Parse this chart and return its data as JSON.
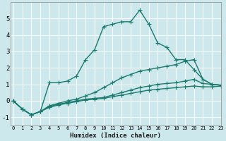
{
  "xlabel": "Humidex (Indice chaleur)",
  "background_color": "#cce8ec",
  "grid_color": "#ffffff",
  "line_color": "#1a7a6e",
  "x_values": [
    0,
    1,
    2,
    3,
    4,
    5,
    6,
    7,
    8,
    9,
    10,
    11,
    12,
    13,
    14,
    15,
    16,
    17,
    18,
    19,
    20,
    21,
    22,
    23
  ],
  "series": [
    [
      0.0,
      -0.5,
      -0.85,
      -0.65,
      1.1,
      1.1,
      1.2,
      1.5,
      2.5,
      3.1,
      4.5,
      4.65,
      4.8,
      4.8,
      5.5,
      4.65,
      3.5,
      3.25,
      2.5,
      2.5,
      1.9,
      1.3,
      1.0,
      0.95
    ],
    [
      0.0,
      -0.5,
      -0.85,
      -0.65,
      -0.3,
      -0.15,
      0.0,
      0.1,
      0.3,
      0.5,
      0.8,
      1.1,
      1.4,
      1.6,
      1.8,
      1.9,
      2.0,
      2.1,
      2.2,
      2.4,
      2.5,
      1.3,
      1.0,
      0.95
    ],
    [
      0.0,
      -0.5,
      -0.85,
      -0.65,
      -0.35,
      -0.2,
      -0.1,
      0.0,
      0.1,
      0.15,
      0.2,
      0.35,
      0.5,
      0.65,
      0.8,
      0.9,
      1.0,
      1.05,
      1.1,
      1.2,
      1.3,
      1.05,
      1.0,
      0.95
    ],
    [
      0.0,
      -0.5,
      -0.85,
      -0.65,
      -0.4,
      -0.25,
      -0.15,
      -0.05,
      0.05,
      0.1,
      0.15,
      0.25,
      0.35,
      0.45,
      0.55,
      0.65,
      0.7,
      0.75,
      0.8,
      0.85,
      0.9,
      0.85,
      0.85,
      0.9
    ]
  ],
  "ylim": [
    -1.5,
    6.0
  ],
  "xlim": [
    -0.3,
    23
  ],
  "yticks": [
    -1,
    0,
    1,
    2,
    3,
    4,
    5
  ],
  "xticks": [
    0,
    1,
    2,
    3,
    4,
    5,
    6,
    7,
    8,
    9,
    10,
    11,
    12,
    13,
    14,
    15,
    16,
    17,
    18,
    19,
    20,
    21,
    22,
    23
  ],
  "xtick_labels": [
    "0",
    "1",
    "2",
    "3",
    "4",
    "5",
    "6",
    "7",
    "8",
    "9",
    "10",
    "11",
    "12",
    "13",
    "14",
    "15",
    "16",
    "17",
    "18",
    "19",
    "20",
    "21",
    "22",
    "23"
  ],
  "marker": "+",
  "markersize": 4,
  "linewidth": 1.0
}
